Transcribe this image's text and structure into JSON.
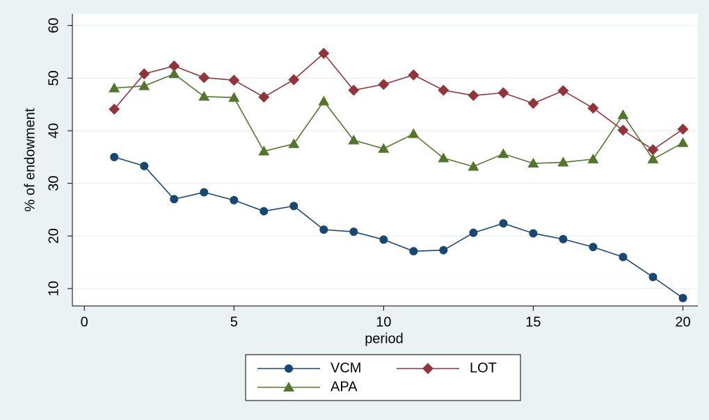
{
  "chart_data": {
    "type": "line",
    "x_label": "period",
    "y_label": "% of endowment",
    "x": [
      1,
      2,
      3,
      4,
      5,
      6,
      7,
      8,
      9,
      10,
      11,
      12,
      13,
      14,
      15,
      16,
      17,
      18,
      19,
      20
    ],
    "series": [
      {
        "name": "VCM",
        "color": "#1a476f",
        "marker": "circle",
        "values": [
          35.0,
          33.3,
          27.0,
          28.3,
          26.8,
          24.7,
          25.7,
          21.2,
          20.8,
          19.3,
          17.1,
          17.3,
          20.6,
          22.4,
          20.5,
          19.4,
          17.9,
          16.0,
          12.2,
          8.2
        ]
      },
      {
        "name": "LOT",
        "color": "#90353b",
        "marker": "diamond",
        "values": [
          44.1,
          50.8,
          52.3,
          50.1,
          49.6,
          46.4,
          49.7,
          54.7,
          47.7,
          48.8,
          50.6,
          47.7,
          46.7,
          47.2,
          45.2,
          47.6,
          44.3,
          40.1,
          36.4,
          40.3
        ]
      },
      {
        "name": "APA",
        "color": "#55752f",
        "marker": "triangle",
        "values": [
          48.1,
          48.5,
          50.8,
          46.5,
          46.3,
          36.1,
          37.5,
          45.6,
          38.2,
          36.6,
          39.4,
          34.8,
          33.2,
          35.6,
          33.8,
          34.0,
          34.6,
          43.0,
          34.6,
          37.7
        ]
      }
    ],
    "xlim": [
      -0.4,
      20.5
    ],
    "xticks": [
      0,
      5,
      10,
      15,
      20
    ],
    "ylim": [
      6.7,
      62.2
    ],
    "yticks": [
      10,
      20,
      30,
      40,
      50,
      60
    ],
    "grid": true
  }
}
